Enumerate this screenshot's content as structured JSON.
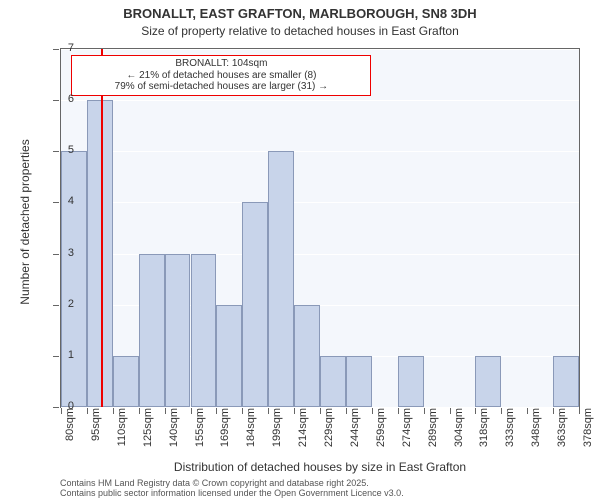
{
  "chart": {
    "type": "histogram",
    "title_line1": "BRONALLT, EAST GRAFTON, MARLBOROUGH, SN8 3DH",
    "title_line2": "Size of property relative to detached houses in East Grafton",
    "title_fontsize": 13,
    "subtitle_fontsize": 12,
    "plot_bg_color": "#f4f7fc",
    "grid_color": "#ffffff",
    "axis_color": "#666666",
    "tick_fontsize": 11,
    "axis_label_fontsize": 12,
    "y": {
      "min": 0,
      "max": 7,
      "ticks": [
        0,
        1,
        2,
        3,
        4,
        5,
        6,
        7
      ],
      "label": "Number of detached properties"
    },
    "x": {
      "ticks": [
        "80sqm",
        "95sqm",
        "110sqm",
        "125sqm",
        "140sqm",
        "155sqm",
        "169sqm",
        "184sqm",
        "199sqm",
        "214sqm",
        "229sqm",
        "244sqm",
        "259sqm",
        "274sqm",
        "289sqm",
        "304sqm",
        "318sqm",
        "333sqm",
        "348sqm",
        "363sqm",
        "378sqm"
      ],
      "label": "Distribution of detached houses by size in East Grafton"
    },
    "bars": {
      "count": 20,
      "values": [
        5,
        6,
        1,
        3,
        3,
        3,
        2,
        4,
        5,
        2,
        1,
        1,
        0,
        1,
        0,
        0,
        1,
        0,
        0,
        1
      ],
      "fill_color": "#c8d4ea",
      "border_color": "#8a99b8",
      "width_ratio": 1.0
    },
    "marker": {
      "position_ratio": 0.08,
      "color": "#ee0000",
      "title": "BRONALLT: 104sqm",
      "annot_line1": "← 21% of detached houses are smaller (8)",
      "annot_line2": "79% of semi-detached houses are larger (31) →",
      "box_border": "#ee0000",
      "box_left_ratio": 0.02,
      "box_width_ratio": 0.56,
      "annot_fontsize": 10
    },
    "footer": {
      "line1": "Contains HM Land Registry data © Crown copyright and database right 2025.",
      "line2": "Contains public sector information licensed under the Open Government Licence v3.0.",
      "fontsize": 9,
      "color": "#555555"
    }
  }
}
